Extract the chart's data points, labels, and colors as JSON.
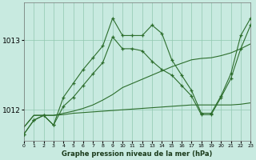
{
  "title": "Graphe pression niveau de la mer (hPa)",
  "bg_color": "#c8eae0",
  "line_color": "#2d6e2d",
  "grid_color": "#90c8b0",
  "xlim": [
    0,
    23
  ],
  "ylim": [
    1011.55,
    1013.55
  ],
  "yticks": [
    1012,
    1013
  ],
  "xticks": [
    0,
    1,
    2,
    3,
    4,
    5,
    6,
    7,
    8,
    9,
    10,
    11,
    12,
    13,
    14,
    15,
    16,
    17,
    18,
    19,
    20,
    21,
    22,
    23
  ],
  "series": [
    {
      "x": [
        0,
        1,
        2,
        3,
        4,
        5,
        6,
        7,
        8,
        9,
        10,
        11,
        12,
        13,
        14,
        15,
        16,
        17,
        18,
        19,
        20,
        21,
        22,
        23
      ],
      "y": [
        1011.75,
        1011.92,
        1011.92,
        1011.92,
        1011.93,
        1011.95,
        1011.96,
        1011.97,
        1011.98,
        1011.99,
        1012.0,
        1012.01,
        1012.02,
        1012.03,
        1012.04,
        1012.05,
        1012.06,
        1012.07,
        1012.07,
        1012.07,
        1012.07,
        1012.07,
        1012.08,
        1012.1
      ],
      "markers": false
    },
    {
      "x": [
        0,
        1,
        2,
        3,
        4,
        5,
        6,
        7,
        8,
        9,
        10,
        11,
        12,
        13,
        14,
        15,
        16,
        17,
        18,
        19,
        20,
        21,
        22,
        23
      ],
      "y": [
        1011.75,
        1011.92,
        1011.92,
        1011.92,
        1011.95,
        1011.98,
        1012.02,
        1012.07,
        1012.14,
        1012.22,
        1012.32,
        1012.38,
        1012.44,
        1012.5,
        1012.56,
        1012.62,
        1012.67,
        1012.72,
        1012.74,
        1012.75,
        1012.78,
        1012.82,
        1012.88,
        1012.95
      ],
      "markers": false
    },
    {
      "x": [
        0,
        1,
        2,
        3,
        4,
        5,
        6,
        7,
        8,
        9,
        10,
        11,
        12,
        13,
        14,
        15,
        16,
        17,
        18,
        19,
        20,
        21,
        22,
        23
      ],
      "y": [
        1011.65,
        1011.85,
        1011.92,
        1011.78,
        1012.05,
        1012.18,
        1012.35,
        1012.52,
        1012.68,
        1013.05,
        1012.88,
        1012.88,
        1012.85,
        1012.7,
        1012.58,
        1012.5,
        1012.35,
        1012.2,
        1011.93,
        1011.93,
        1012.18,
        1012.45,
        1012.88,
        1013.22
      ],
      "markers": true
    },
    {
      "x": [
        0,
        1,
        2,
        3,
        4,
        5,
        6,
        7,
        8,
        9,
        10,
        11,
        12,
        13,
        14,
        15,
        16,
        17,
        18,
        19,
        20,
        21,
        22,
        23
      ],
      "y": [
        1011.65,
        1011.85,
        1011.92,
        1011.78,
        1012.18,
        1012.38,
        1012.58,
        1012.75,
        1012.92,
        1013.32,
        1013.07,
        1013.07,
        1013.07,
        1013.22,
        1013.1,
        1012.72,
        1012.5,
        1012.28,
        1011.95,
        1011.95,
        1012.2,
        1012.52,
        1013.07,
        1013.32
      ],
      "markers": true
    }
  ]
}
